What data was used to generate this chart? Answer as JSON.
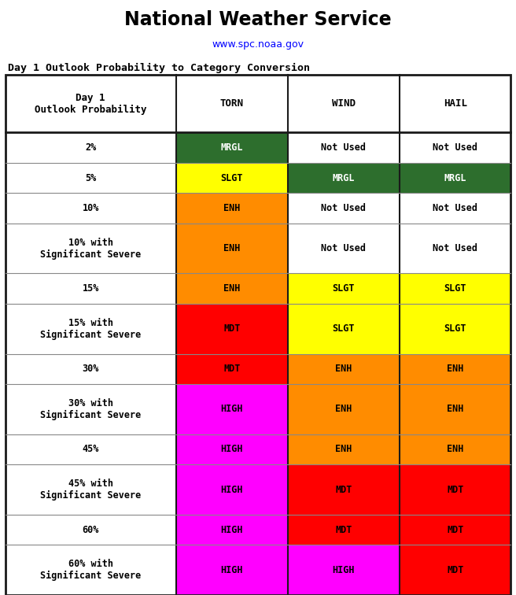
{
  "title": "National Weather Service",
  "subtitle": "www.spc.noaa.gov",
  "table_title": "Day 1 Outlook Probability to Category Conversion",
  "col_headers": [
    "Day 1\nOutlook Probability",
    "TORN",
    "WIND",
    "HAIL"
  ],
  "rows": [
    {
      "label": "2%",
      "cells": [
        {
          "text": "MRGL",
          "bg": "#2d6e2d",
          "fg": "white"
        },
        {
          "text": "Not Used",
          "bg": "white",
          "fg": "black"
        },
        {
          "text": "Not Used",
          "bg": "white",
          "fg": "black"
        }
      ]
    },
    {
      "label": "5%",
      "cells": [
        {
          "text": "SLGT",
          "bg": "#ffff00",
          "fg": "black"
        },
        {
          "text": "MRGL",
          "bg": "#2d6e2d",
          "fg": "white"
        },
        {
          "text": "MRGL",
          "bg": "#2d6e2d",
          "fg": "white"
        }
      ]
    },
    {
      "label": "10%",
      "cells": [
        {
          "text": "ENH",
          "bg": "#ff8c00",
          "fg": "black"
        },
        {
          "text": "Not Used",
          "bg": "white",
          "fg": "black"
        },
        {
          "text": "Not Used",
          "bg": "white",
          "fg": "black"
        }
      ]
    },
    {
      "label": "10% with\nSignificant Severe",
      "cells": [
        {
          "text": "ENH",
          "bg": "#ff8c00",
          "fg": "black"
        },
        {
          "text": "Not Used",
          "bg": "white",
          "fg": "black"
        },
        {
          "text": "Not Used",
          "bg": "white",
          "fg": "black"
        }
      ]
    },
    {
      "label": "15%",
      "cells": [
        {
          "text": "ENH",
          "bg": "#ff8c00",
          "fg": "black"
        },
        {
          "text": "SLGT",
          "bg": "#ffff00",
          "fg": "black"
        },
        {
          "text": "SLGT",
          "bg": "#ffff00",
          "fg": "black"
        }
      ]
    },
    {
      "label": "15% with\nSignificant Severe",
      "cells": [
        {
          "text": "MDT",
          "bg": "#ff0000",
          "fg": "black"
        },
        {
          "text": "SLGT",
          "bg": "#ffff00",
          "fg": "black"
        },
        {
          "text": "SLGT",
          "bg": "#ffff00",
          "fg": "black"
        }
      ]
    },
    {
      "label": "30%",
      "cells": [
        {
          "text": "MDT",
          "bg": "#ff0000",
          "fg": "black"
        },
        {
          "text": "ENH",
          "bg": "#ff8c00",
          "fg": "black"
        },
        {
          "text": "ENH",
          "bg": "#ff8c00",
          "fg": "black"
        }
      ]
    },
    {
      "label": "30% with\nSignificant Severe",
      "cells": [
        {
          "text": "HIGH",
          "bg": "#ff00ff",
          "fg": "black"
        },
        {
          "text": "ENH",
          "bg": "#ff8c00",
          "fg": "black"
        },
        {
          "text": "ENH",
          "bg": "#ff8c00",
          "fg": "black"
        }
      ]
    },
    {
      "label": "45%",
      "cells": [
        {
          "text": "HIGH",
          "bg": "#ff00ff",
          "fg": "black"
        },
        {
          "text": "ENH",
          "bg": "#ff8c00",
          "fg": "black"
        },
        {
          "text": "ENH",
          "bg": "#ff8c00",
          "fg": "black"
        }
      ]
    },
    {
      "label": "45% with\nSignificant Severe",
      "cells": [
        {
          "text": "HIGH",
          "bg": "#ff00ff",
          "fg": "black"
        },
        {
          "text": "MDT",
          "bg": "#ff0000",
          "fg": "black"
        },
        {
          "text": "MDT",
          "bg": "#ff0000",
          "fg": "black"
        }
      ]
    },
    {
      "label": "60%",
      "cells": [
        {
          "text": "HIGH",
          "bg": "#ff00ff",
          "fg": "black"
        },
        {
          "text": "MDT",
          "bg": "#ff0000",
          "fg": "black"
        },
        {
          "text": "MDT",
          "bg": "#ff0000",
          "fg": "black"
        }
      ]
    },
    {
      "label": "60% with\nSignificant Severe",
      "cells": [
        {
          "text": "HIGH",
          "bg": "#ff00ff",
          "fg": "black"
        },
        {
          "text": "HIGH",
          "bg": "#ff00ff",
          "fg": "black"
        },
        {
          "text": "MDT",
          "bg": "#ff0000",
          "fg": "black"
        }
      ]
    }
  ],
  "header_bg": "white",
  "header_fg": "black",
  "label_col_bg": "white",
  "label_col_fg": "black",
  "outer_border_color": "#1a1a1a",
  "inner_border_color": "#888888",
  "background_color": "white",
  "title_fontsize": 17,
  "subtitle_fontsize": 9,
  "table_title_fontsize": 9.5,
  "header_fontsize": 9,
  "cell_fontsize": 8.5,
  "label_fontsize": 8.5,
  "fig_width": 6.56,
  "fig_height": 7.56,
  "fig_dpi": 100
}
